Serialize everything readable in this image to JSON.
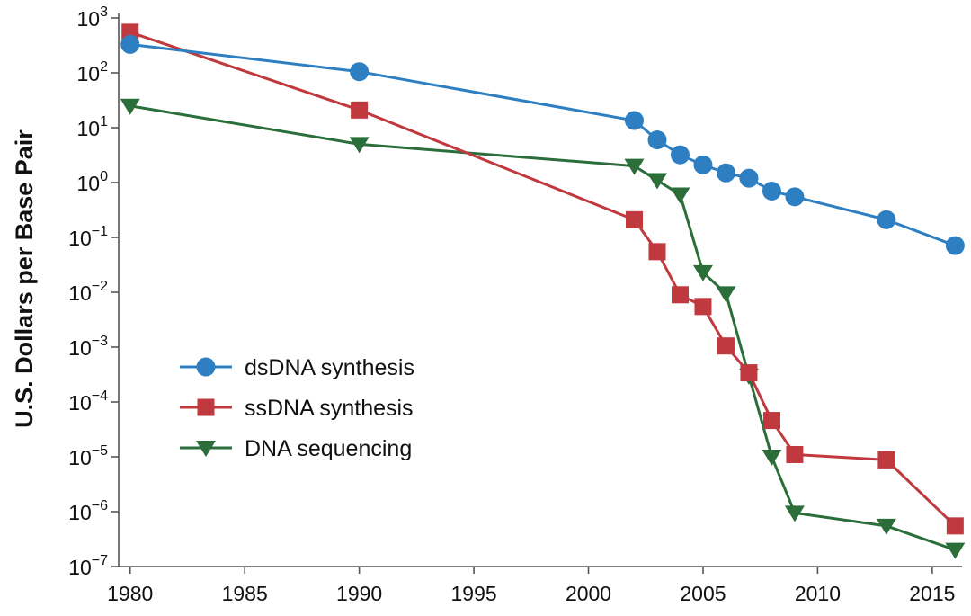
{
  "chart_data": {
    "type": "line",
    "title": "",
    "xlabel": "",
    "ylabel": "U.S. Dollars per Base Pair",
    "yscale": "log",
    "xlim": [
      1979.5,
      2016.3
    ],
    "ylim_exp": [
      -7,
      3
    ],
    "x_ticks": [
      1980,
      1985,
      1990,
      1995,
      2000,
      2005,
      2010,
      2015
    ],
    "y_ticks": [
      {
        "base": "10",
        "exp": "3"
      },
      {
        "base": "10",
        "exp": "2"
      },
      {
        "base": "10",
        "exp": "1"
      },
      {
        "base": "10",
        "exp": "0"
      },
      {
        "base": "10",
        "exp": "−1"
      },
      {
        "base": "10",
        "exp": "−2"
      },
      {
        "base": "10",
        "exp": "−3"
      },
      {
        "base": "10",
        "exp": "−4"
      },
      {
        "base": "10",
        "exp": "−5"
      },
      {
        "base": "10",
        "exp": "−6"
      },
      {
        "base": "10",
        "exp": "−7"
      }
    ],
    "legend_position": "lower-left",
    "series": [
      {
        "name": "dsDNA synthesis",
        "color": "#2e7fc1",
        "marker": "circle",
        "x": [
          1980,
          1990,
          2002,
          2003,
          2004,
          2005,
          2006,
          2007,
          2008,
          2009,
          2013,
          2016
        ],
        "y": [
          330,
          105,
          13.5,
          6,
          3.2,
          2.1,
          1.5,
          1.2,
          0.7,
          0.55,
          0.21,
          0.071
        ]
      },
      {
        "name": "ssDNA synthesis",
        "color": "#c0393f",
        "marker": "square",
        "x": [
          1980,
          1990,
          2002,
          2003,
          2004,
          2005,
          2006,
          2007,
          2008,
          2009,
          2013,
          2016
        ],
        "y": [
          550,
          21,
          0.21,
          0.055,
          0.009,
          0.0055,
          0.00105,
          0.00034,
          4.6e-05,
          1.1e-05,
          8.8e-06,
          5.5e-07
        ]
      },
      {
        "name": "DNA sequencing",
        "color": "#2b6e3a",
        "marker": "triangle-down",
        "x": [
          1980,
          1990,
          2002,
          2003,
          2004,
          2005,
          2006,
          2007,
          2008,
          2009,
          2013,
          2016
        ],
        "y": [
          25,
          5,
          2,
          1.1,
          0.6,
          0.023,
          0.0095,
          0.0003,
          1e-05,
          9.5e-07,
          5.5e-07,
          2e-07
        ]
      }
    ]
  }
}
